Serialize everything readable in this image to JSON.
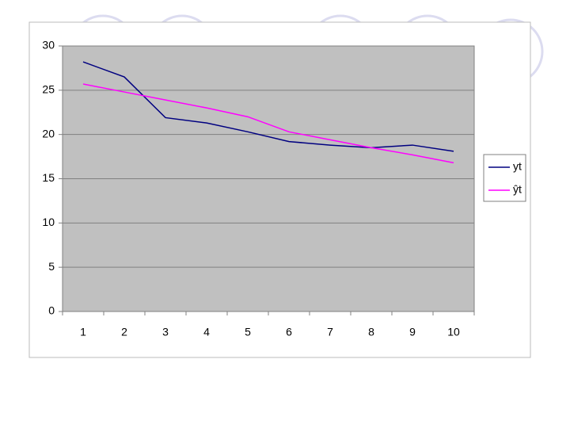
{
  "chart_data": {
    "type": "line",
    "categories": [
      "1",
      "2",
      "3",
      "4",
      "5",
      "6",
      "7",
      "8",
      "9",
      "10"
    ],
    "series": [
      {
        "name": "yt",
        "color": "#000080",
        "values": [
          28.2,
          26.5,
          21.9,
          21.3,
          20.3,
          19.2,
          18.8,
          18.5,
          18.8,
          18.1
        ]
      },
      {
        "name": "ŷt",
        "color": "#ff00ff",
        "values": [
          25.7,
          24.8,
          23.9,
          23.0,
          22.0,
          20.3,
          19.4,
          18.5,
          17.7,
          16.8
        ]
      }
    ],
    "ylim": [
      0,
      30
    ],
    "yticks": [
      0,
      5,
      10,
      15,
      20,
      25,
      30
    ],
    "grid": true,
    "legend": "right"
  }
}
